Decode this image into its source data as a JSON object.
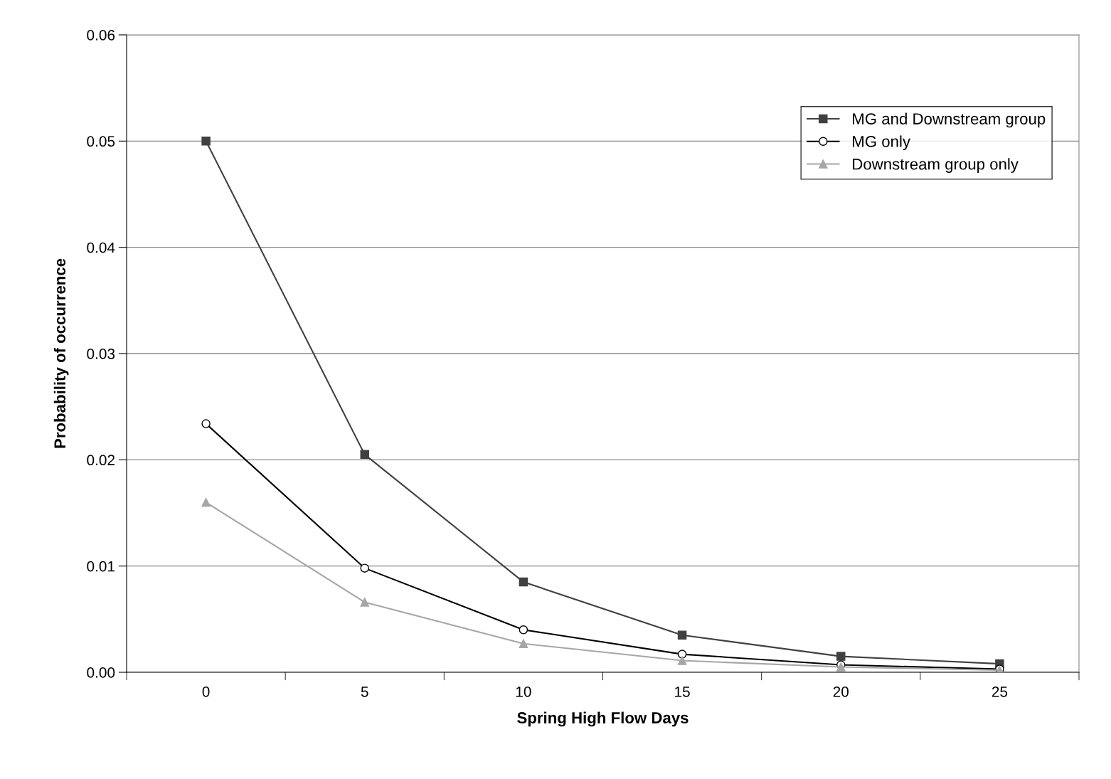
{
  "chart_data": {
    "type": "line",
    "xlabel": "Spring High Flow Days",
    "ylabel": "Probability of occurrence",
    "categories": [
      "0",
      "5",
      "10",
      "15",
      "20",
      "25"
    ],
    "series": [
      {
        "name": "MG and Downstream group",
        "color": "#404040",
        "marker": "square",
        "values": [
          0.05,
          0.0205,
          0.0085,
          0.0035,
          0.0015,
          0.0008
        ]
      },
      {
        "name": "MG only",
        "color": "#000000",
        "marker": "circle",
        "values": [
          0.0234,
          0.0098,
          0.004,
          0.0017,
          0.0007,
          0.0003
        ]
      },
      {
        "name": "Downstream group only",
        "color": "#a6a6a6",
        "marker": "triangle",
        "values": [
          0.016,
          0.0066,
          0.0027,
          0.0011,
          0.0005,
          0.0002
        ]
      }
    ],
    "ylim": [
      0,
      0.06
    ],
    "yticks": [
      {
        "value": 0,
        "label": "0.00"
      },
      {
        "value": 0.01,
        "label": "0.01"
      },
      {
        "value": 0.02,
        "label": "0.02"
      },
      {
        "value": 0.03,
        "label": "0.03"
      },
      {
        "value": 0.04,
        "label": "0.04"
      },
      {
        "value": 0.05,
        "label": "0.05"
      },
      {
        "value": 0.06,
        "label": "0.06"
      }
    ],
    "grid": "y",
    "legend": "top right",
    "line_style": "solid"
  }
}
